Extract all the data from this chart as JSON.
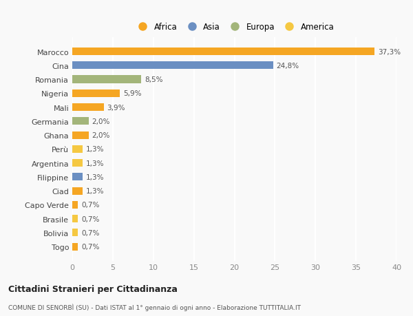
{
  "categories": [
    "Togo",
    "Bolivia",
    "Brasile",
    "Capo Verde",
    "Ciad",
    "Filippine",
    "Argentina",
    "Perù",
    "Ghana",
    "Germania",
    "Mali",
    "Nigeria",
    "Romania",
    "Cina",
    "Marocco"
  ],
  "values": [
    0.7,
    0.7,
    0.7,
    0.7,
    1.3,
    1.3,
    1.3,
    1.3,
    2.0,
    2.0,
    3.9,
    5.9,
    8.5,
    24.8,
    37.3
  ],
  "labels": [
    "0,7%",
    "0,7%",
    "0,7%",
    "0,7%",
    "1,3%",
    "1,3%",
    "1,3%",
    "1,3%",
    "2,0%",
    "2,0%",
    "3,9%",
    "5,9%",
    "8,5%",
    "24,8%",
    "37,3%"
  ],
  "colors": [
    "#f5a623",
    "#f5c842",
    "#f5c842",
    "#f5a623",
    "#f5a623",
    "#6b8fc2",
    "#f5c842",
    "#f5c842",
    "#f5a623",
    "#a3b57a",
    "#f5a623",
    "#f5a623",
    "#a3b57a",
    "#6b8fc2",
    "#f5a623"
  ],
  "legend_labels": [
    "Africa",
    "Asia",
    "Europa",
    "America"
  ],
  "legend_colors": [
    "#f5a623",
    "#6b8fc2",
    "#a3b57a",
    "#f5c842"
  ],
  "xlim": [
    0,
    40
  ],
  "xticks": [
    0,
    5,
    10,
    15,
    20,
    25,
    30,
    35,
    40
  ],
  "title": "Cittadini Stranieri per Cittadinanza",
  "subtitle": "COMUNE DI SENORBÌ (SU) - Dati ISTAT al 1° gennaio di ogni anno - Elaborazione TUTTITALIA.IT",
  "background_color": "#f9f9f9",
  "bar_height": 0.55,
  "label_fontsize": 7.5,
  "ytick_fontsize": 8,
  "xtick_fontsize": 8,
  "legend_fontsize": 8.5,
  "title_fontsize": 9,
  "subtitle_fontsize": 6.5
}
